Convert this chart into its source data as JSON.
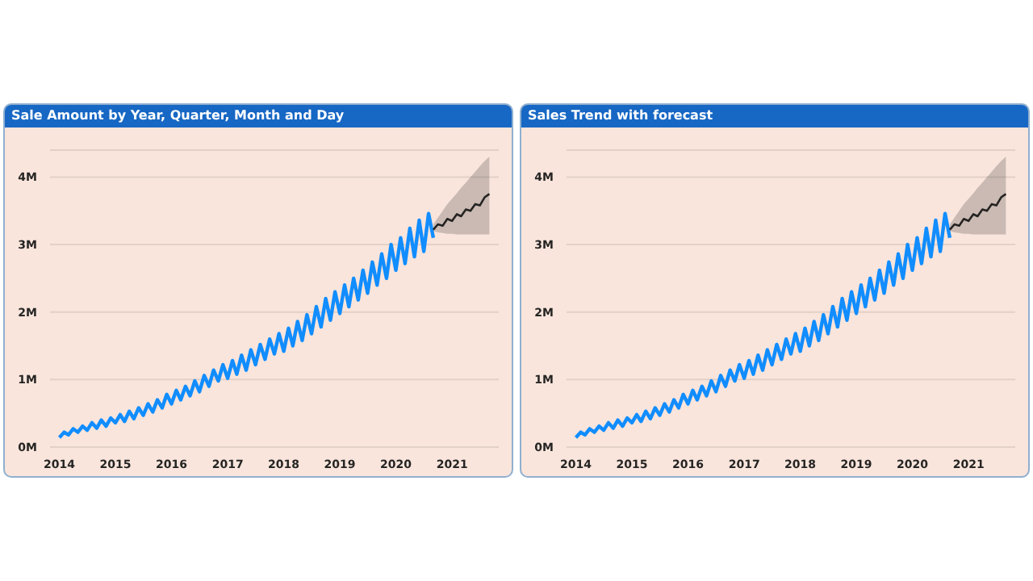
{
  "chart_data": [
    {
      "type": "line",
      "title": "Sale Amount by Year, Quarter, Month and Day",
      "xlim": [
        "2013-11",
        "2021-11"
      ],
      "xticks": [
        "2014",
        "2015",
        "2016",
        "2017",
        "2018",
        "2019",
        "2020",
        "2021"
      ],
      "ylim": [
        0,
        4.4
      ],
      "yticks": [
        {
          "value": 0,
          "label": "0M"
        },
        {
          "value": 1,
          "label": "1M"
        },
        {
          "value": 2,
          "label": "2M"
        },
        {
          "value": 3,
          "label": "3M"
        },
        {
          "value": 4,
          "label": "4M"
        }
      ],
      "grid": "y",
      "series": [
        {
          "color": "#118dff",
          "x": [
            "2014-01",
            "2014-02",
            "2014-03",
            "2014-04",
            "2014-05",
            "2014-06",
            "2014-07",
            "2014-08",
            "2014-09",
            "2014-10",
            "2014-11",
            "2014-12",
            "2015-01",
            "2015-02",
            "2015-03",
            "2015-04",
            "2015-05",
            "2015-06",
            "2015-07",
            "2015-08",
            "2015-09",
            "2015-10",
            "2015-11",
            "2015-12",
            "2016-01",
            "2016-02",
            "2016-03",
            "2016-04",
            "2016-05",
            "2016-06",
            "2016-07",
            "2016-08",
            "2016-09",
            "2016-10",
            "2016-11",
            "2016-12",
            "2017-01",
            "2017-02",
            "2017-03",
            "2017-04",
            "2017-05",
            "2017-06",
            "2017-07",
            "2017-08",
            "2017-09",
            "2017-10",
            "2017-11",
            "2017-12",
            "2018-01",
            "2018-02",
            "2018-03",
            "2018-04",
            "2018-05",
            "2018-06",
            "2018-07",
            "2018-08",
            "2018-09",
            "2018-10",
            "2018-11",
            "2018-12",
            "2019-01",
            "2019-02",
            "2019-03",
            "2019-04",
            "2019-05",
            "2019-06",
            "2019-07",
            "2019-08",
            "2019-09",
            "2019-10",
            "2019-11",
            "2019-12",
            "2020-01",
            "2020-02",
            "2020-03",
            "2020-04",
            "2020-05",
            "2020-06",
            "2020-07",
            "2020-08",
            "2020-09"
          ],
          "values": [
            0.14,
            0.22,
            0.18,
            0.27,
            0.22,
            0.31,
            0.25,
            0.36,
            0.28,
            0.4,
            0.31,
            0.43,
            0.36,
            0.48,
            0.38,
            0.53,
            0.42,
            0.58,
            0.47,
            0.64,
            0.52,
            0.7,
            0.58,
            0.78,
            0.64,
            0.84,
            0.7,
            0.9,
            0.76,
            0.98,
            0.82,
            1.06,
            0.9,
            1.14,
            0.98,
            1.22,
            1.02,
            1.28,
            1.08,
            1.36,
            1.14,
            1.44,
            1.22,
            1.52,
            1.3,
            1.6,
            1.38,
            1.68,
            1.42,
            1.76,
            1.5,
            1.86,
            1.58,
            1.96,
            1.68,
            2.08,
            1.78,
            2.2,
            1.88,
            2.3,
            1.98,
            2.4,
            2.08,
            2.5,
            2.18,
            2.62,
            2.28,
            2.74,
            2.4,
            2.86,
            2.5,
            3.0,
            2.62,
            3.1,
            2.72,
            3.24,
            2.82,
            3.36,
            2.9,
            3.46,
            3.1
          ]
        },
        {
          "color": "#252423",
          "x": [
            "2020-09",
            "2020-10",
            "2020-11",
            "2020-12",
            "2021-01",
            "2021-02",
            "2021-03",
            "2021-04",
            "2021-05",
            "2021-06",
            "2021-07",
            "2021-08",
            "2021-09"
          ],
          "values": [
            3.22,
            3.3,
            3.28,
            3.38,
            3.35,
            3.45,
            3.42,
            3.52,
            3.5,
            3.6,
            3.58,
            3.7,
            3.75
          ],
          "lower": [
            3.2,
            3.18,
            3.17,
            3.16,
            3.16,
            3.15,
            3.15,
            3.15,
            3.15,
            3.15,
            3.15,
            3.15,
            3.15
          ],
          "upper": [
            3.3,
            3.4,
            3.5,
            3.6,
            3.68,
            3.76,
            3.84,
            3.92,
            4.0,
            4.08,
            4.16,
            4.24,
            4.3
          ]
        }
      ]
    },
    {
      "type": "line",
      "title": "Sales Trend with forecast",
      "xlim": [
        "2013-11",
        "2021-11"
      ],
      "xticks": [
        "2014",
        "2015",
        "2016",
        "2017",
        "2018",
        "2019",
        "2020",
        "2021"
      ],
      "ylim": [
        0,
        4.4
      ],
      "yticks": [
        {
          "value": 0,
          "label": "0M"
        },
        {
          "value": 1,
          "label": "1M"
        },
        {
          "value": 2,
          "label": "2M"
        },
        {
          "value": 3,
          "label": "3M"
        },
        {
          "value": 4,
          "label": "4M"
        }
      ],
      "grid": "y",
      "series": [
        {
          "color": "#118dff",
          "x": [
            "2014-01",
            "2014-02",
            "2014-03",
            "2014-04",
            "2014-05",
            "2014-06",
            "2014-07",
            "2014-08",
            "2014-09",
            "2014-10",
            "2014-11",
            "2014-12",
            "2015-01",
            "2015-02",
            "2015-03",
            "2015-04",
            "2015-05",
            "2015-06",
            "2015-07",
            "2015-08",
            "2015-09",
            "2015-10",
            "2015-11",
            "2015-12",
            "2016-01",
            "2016-02",
            "2016-03",
            "2016-04",
            "2016-05",
            "2016-06",
            "2016-07",
            "2016-08",
            "2016-09",
            "2016-10",
            "2016-11",
            "2016-12",
            "2017-01",
            "2017-02",
            "2017-03",
            "2017-04",
            "2017-05",
            "2017-06",
            "2017-07",
            "2017-08",
            "2017-09",
            "2017-10",
            "2017-11",
            "2017-12",
            "2018-01",
            "2018-02",
            "2018-03",
            "2018-04",
            "2018-05",
            "2018-06",
            "2018-07",
            "2018-08",
            "2018-09",
            "2018-10",
            "2018-11",
            "2018-12",
            "2019-01",
            "2019-02",
            "2019-03",
            "2019-04",
            "2019-05",
            "2019-06",
            "2019-07",
            "2019-08",
            "2019-09",
            "2019-10",
            "2019-11",
            "2019-12",
            "2020-01",
            "2020-02",
            "2020-03",
            "2020-04",
            "2020-05",
            "2020-06",
            "2020-07",
            "2020-08",
            "2020-09"
          ],
          "values": [
            0.14,
            0.22,
            0.18,
            0.27,
            0.22,
            0.31,
            0.25,
            0.36,
            0.28,
            0.4,
            0.31,
            0.43,
            0.36,
            0.48,
            0.38,
            0.53,
            0.42,
            0.58,
            0.47,
            0.64,
            0.52,
            0.7,
            0.58,
            0.78,
            0.64,
            0.84,
            0.7,
            0.9,
            0.76,
            0.98,
            0.82,
            1.06,
            0.9,
            1.14,
            0.98,
            1.22,
            1.02,
            1.28,
            1.08,
            1.36,
            1.14,
            1.44,
            1.22,
            1.52,
            1.3,
            1.6,
            1.38,
            1.68,
            1.42,
            1.76,
            1.5,
            1.86,
            1.58,
            1.96,
            1.68,
            2.08,
            1.78,
            2.2,
            1.88,
            2.3,
            1.98,
            2.4,
            2.08,
            2.5,
            2.18,
            2.62,
            2.28,
            2.74,
            2.4,
            2.86,
            2.5,
            3.0,
            2.62,
            3.1,
            2.72,
            3.24,
            2.82,
            3.36,
            2.9,
            3.46,
            3.1
          ]
        },
        {
          "color": "#252423",
          "x": [
            "2020-09",
            "2020-10",
            "2020-11",
            "2020-12",
            "2021-01",
            "2021-02",
            "2021-03",
            "2021-04",
            "2021-05",
            "2021-06",
            "2021-07",
            "2021-08",
            "2021-09"
          ],
          "values": [
            3.22,
            3.3,
            3.28,
            3.38,
            3.35,
            3.45,
            3.42,
            3.52,
            3.5,
            3.6,
            3.58,
            3.7,
            3.75
          ],
          "lower": [
            3.2,
            3.18,
            3.17,
            3.16,
            3.16,
            3.15,
            3.15,
            3.15,
            3.15,
            3.15,
            3.15,
            3.15,
            3.15
          ],
          "upper": [
            3.3,
            3.4,
            3.5,
            3.6,
            3.68,
            3.76,
            3.84,
            3.92,
            4.0,
            4.08,
            4.16,
            4.24,
            4.3
          ]
        }
      ]
    }
  ]
}
